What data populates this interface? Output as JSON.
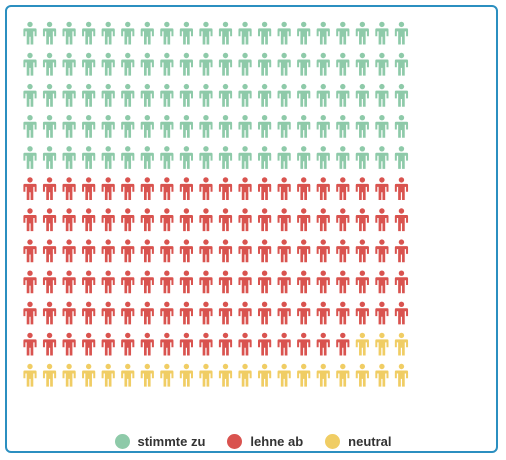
{
  "chart_data": {
    "type": "pictogram",
    "icon": "person-icon",
    "columns": 20,
    "rows": 12,
    "series": [
      {
        "name": "stimmte zu",
        "count": 100,
        "color": "#8ecaa9"
      },
      {
        "name": "lehne ab",
        "count": 117,
        "color": "#d9534f"
      },
      {
        "name": "neutral",
        "count": 23,
        "color": "#f0cd64"
      }
    ],
    "legend_position": "bottom-center"
  }
}
